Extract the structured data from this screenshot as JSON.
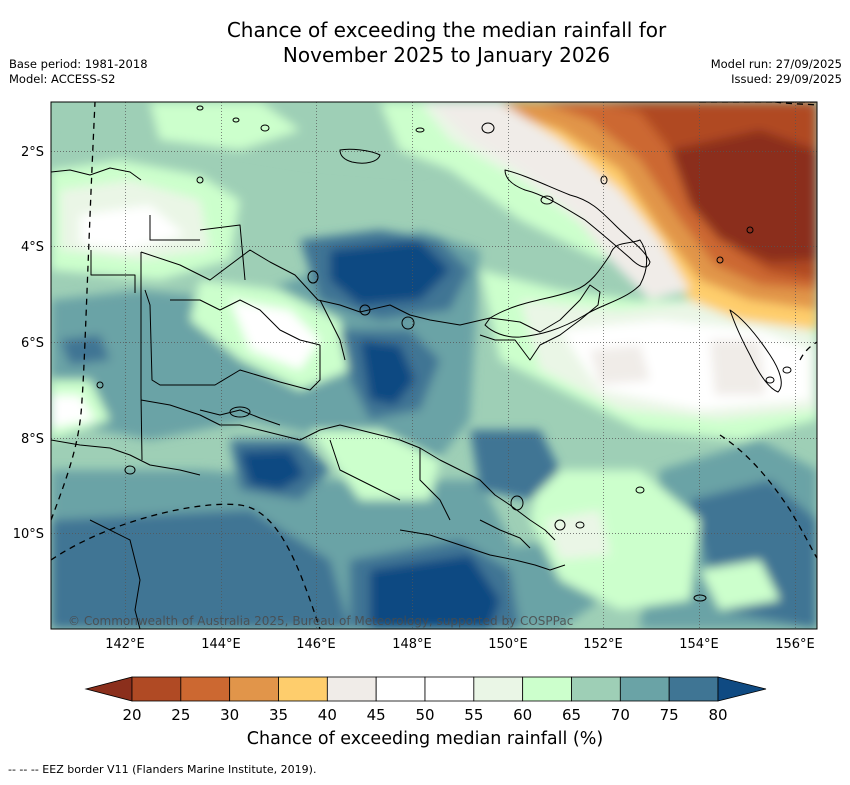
{
  "title": {
    "line1": "Chance of exceeding the median rainfall for",
    "line2": "November 2025 to January 2026"
  },
  "meta": {
    "base_period": "Base period: 1981-2018",
    "model": "Model: ACCESS-S2",
    "model_run": "Model run: 27/09/2025",
    "issued": "Issued: 29/09/2025"
  },
  "map": {
    "region": "Papua New Guinea",
    "lon_ticks": [
      "142°E",
      "144°E",
      "146°E",
      "148°E",
      "150°E",
      "152°E",
      "154°E",
      "156°E"
    ],
    "lat_ticks": [
      "2°S",
      "4°S",
      "6°S",
      "8°S",
      "10°S"
    ],
    "copyright": "© Commonwealth of Australia 2025, Bureau of Meteorology, supported by COSPPac"
  },
  "colorbar": {
    "labels": [
      "20",
      "25",
      "30",
      "35",
      "40",
      "45",
      "50",
      "55",
      "60",
      "65",
      "70",
      "75",
      "80"
    ],
    "colors": [
      "#8b2f1c",
      "#b04a24",
      "#cc6831",
      "#e1954a",
      "#fecd6c",
      "#f0ece8",
      "#ffffff",
      "#ffffff",
      "#eaf6e6",
      "#ccffcc",
      "#9ecfb6",
      "#6aa3a6",
      "#3f7594",
      "#0f4a82"
    ],
    "title": "Chance of exceeding median rainfall (%)"
  },
  "footnote": "--  --  -- EEZ border V11 (Flanders Marine Institute, 2019)."
}
